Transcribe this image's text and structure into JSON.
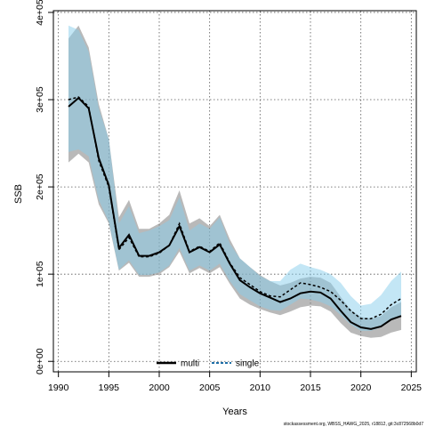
{
  "chart_data": {
    "type": "area",
    "xlabel": "Years",
    "ylabel": "SSB",
    "xlim": [
      1989.5,
      2025.5
    ],
    "ylim": [
      -12000,
      402000
    ],
    "x_ticks": [
      1990,
      1995,
      2000,
      2005,
      2010,
      2015,
      2020,
      2025
    ],
    "x_tick_labels": [
      "1990",
      "1995",
      "2000",
      "2005",
      "2010",
      "2015",
      "2020",
      "2025"
    ],
    "y_ticks": [
      0,
      100000,
      200000,
      300000,
      400000
    ],
    "y_tick_labels": [
      "0e+00",
      "1e+05",
      "2e+05",
      "3e+05",
      "4e+05"
    ],
    "grid": true,
    "legend_position": "bottom",
    "x": [
      1991,
      1992,
      1993,
      1994,
      1995,
      1996,
      1997,
      1998,
      1999,
      2000,
      2001,
      2002,
      2003,
      2004,
      2005,
      2006,
      2007,
      2008,
      2009,
      2010,
      2011,
      2012,
      2013,
      2014,
      2015,
      2016,
      2017,
      2018,
      2019,
      2020,
      2021,
      2022,
      2023,
      2024
    ],
    "series": [
      {
        "name": "multi",
        "color": "#000000",
        "band_color": "#808080",
        "values": [
          292000,
          302000,
          290000,
          233000,
          202000,
          130000,
          145000,
          121000,
          121000,
          125000,
          133000,
          155000,
          125000,
          131000,
          125000,
          134000,
          112000,
          93000,
          85000,
          78000,
          73000,
          68000,
          72000,
          78000,
          80000,
          79000,
          72000,
          58000,
          45000,
          39000,
          37000,
          40000,
          48000,
          52000
        ],
        "lower": [
          228000,
          238000,
          228000,
          180000,
          158000,
          104000,
          113000,
          97000,
          97000,
          100000,
          108000,
          126000,
          101000,
          107000,
          101000,
          108000,
          89000,
          72000,
          65000,
          60000,
          56000,
          53000,
          57000,
          62000,
          64000,
          63000,
          57000,
          44000,
          33000,
          29000,
          27000,
          28000,
          33000,
          36000
        ],
        "upper": [
          370000,
          385000,
          360000,
          295000,
          255000,
          165000,
          185000,
          152000,
          152000,
          158000,
          168000,
          196000,
          158000,
          164000,
          155000,
          168000,
          140000,
          118000,
          108000,
          99000,
          92000,
          87000,
          90000,
          95000,
          97000,
          96000,
          90000,
          74000,
          59000,
          51000,
          49000,
          52000,
          62000,
          68000
        ]
      },
      {
        "name": "single",
        "color": "#1f6fa8",
        "band_color": "#87ceeb",
        "values": [
          300000,
          303000,
          292000,
          230000,
          200000,
          128000,
          142000,
          120000,
          120000,
          124000,
          133000,
          158000,
          126000,
          132000,
          126000,
          136000,
          113000,
          96000,
          88000,
          80000,
          75000,
          74000,
          82000,
          90000,
          88000,
          85000,
          80000,
          70000,
          58000,
          49000,
          49000,
          54000,
          65000,
          72000
        ],
        "lower": [
          240000,
          243000,
          235000,
          185000,
          160000,
          105000,
          116000,
          99000,
          99000,
          102000,
          110000,
          130000,
          104000,
          110000,
          104000,
          112000,
          92000,
          77000,
          70000,
          63000,
          59000,
          58000,
          65000,
          72000,
          71000,
          68000,
          63000,
          53000,
          42000,
          35000,
          35000,
          39000,
          47000,
          52000
        ],
        "upper": [
          385000,
          380000,
          355000,
          290000,
          255000,
          158000,
          178000,
          147000,
          150000,
          155000,
          162000,
          188000,
          150000,
          158000,
          152000,
          165000,
          135000,
          118000,
          108000,
          98000,
          92000,
          92000,
          105000,
          112000,
          108000,
          105000,
          100000,
          90000,
          75000,
          64000,
          66000,
          76000,
          92000,
          103000
        ]
      }
    ],
    "annotation": "stockassessment.org, WBSS_HAWG_2025, r18812, git:3c872568b0d7"
  }
}
